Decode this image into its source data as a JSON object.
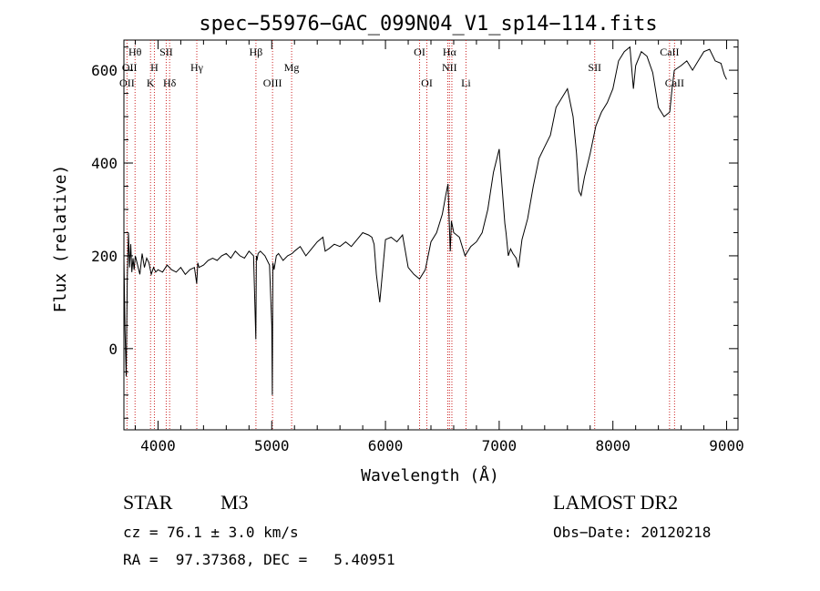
{
  "chart_data": {
    "type": "line",
    "title": "spec−55976−GAC_099N04_V1_sp14−114.fits",
    "xlabel": "Wavelength (Å)",
    "ylabel": "Flux (relative)",
    "xlim": [
      3700,
      9100
    ],
    "ylim": [
      -175,
      665
    ],
    "x_ticks": [
      4000,
      5000,
      6000,
      7000,
      8000,
      9000
    ],
    "x_tick_labels": [
      "4000",
      "5000",
      "6000",
      "7000",
      "8000",
      "9000"
    ],
    "y_ticks": [
      0,
      200,
      400,
      600
    ],
    "y_tick_labels": [
      "0",
      "200",
      "400",
      "600"
    ],
    "grid": false,
    "line_color": "#000000",
    "marker_color": "#cc2222",
    "series": [
      {
        "x": [
          3700,
          3710,
          3720,
          3730,
          3740,
          3750,
          3760,
          3770,
          3780,
          3790,
          3800,
          3820,
          3840,
          3860,
          3880,
          3900,
          3920,
          3940,
          3960,
          3980,
          4000,
          4040,
          4080,
          4120,
          4160,
          4200,
          4240,
          4280,
          4320,
          4340,
          4350,
          4360,
          4400,
          4440,
          4480,
          4520,
          4560,
          4600,
          4640,
          4680,
          4720,
          4760,
          4800,
          4840,
          4860,
          4865,
          4870,
          4880,
          4900,
          4940,
          4980,
          5000,
          5005,
          5010,
          5020,
          5040,
          5060,
          5100,
          5140,
          5180,
          5200,
          5250,
          5300,
          5350,
          5400,
          5450,
          5470,
          5500,
          5550,
          5600,
          5650,
          5700,
          5750,
          5800,
          5850,
          5880,
          5900,
          5920,
          5950,
          6000,
          6050,
          6100,
          6150,
          6200,
          6250,
          6300,
          6350,
          6400,
          6450,
          6500,
          6530,
          6550,
          6563,
          6570,
          6580,
          6600,
          6650,
          6700,
          6750,
          6800,
          6850,
          6900,
          6950,
          7000,
          7050,
          7060,
          7080,
          7100,
          7120,
          7150,
          7170,
          7200,
          7250,
          7300,
          7350,
          7400,
          7450,
          7500,
          7550,
          7600,
          7650,
          7680,
          7700,
          7720,
          7750,
          7800,
          7850,
          7900,
          7950,
          8000,
          8050,
          8100,
          8150,
          8180,
          8200,
          8250,
          8300,
          8350,
          8400,
          8450,
          8500,
          8520,
          8540,
          8600,
          8650,
          8700,
          8750,
          8800,
          8850,
          8900,
          8950,
          8980,
          9000
        ],
        "y": [
          200,
          40,
          -60,
          150,
          250,
          175,
          225,
          165,
          195,
          170,
          200,
          180,
          160,
          205,
          175,
          195,
          185,
          160,
          175,
          165,
          170,
          165,
          180,
          170,
          165,
          175,
          160,
          170,
          175,
          140,
          185,
          175,
          180,
          190,
          195,
          190,
          200,
          205,
          195,
          210,
          200,
          195,
          210,
          200,
          20,
          200,
          190,
          205,
          210,
          200,
          180,
          50,
          -100,
          185,
          170,
          200,
          205,
          190,
          200,
          205,
          210,
          220,
          200,
          215,
          230,
          240,
          210,
          215,
          225,
          220,
          230,
          220,
          235,
          250,
          245,
          240,
          225,
          160,
          100,
          235,
          240,
          230,
          245,
          175,
          160,
          150,
          170,
          230,
          250,
          290,
          330,
          355,
          260,
          210,
          275,
          250,
          240,
          200,
          220,
          230,
          250,
          300,
          380,
          430,
          270,
          250,
          200,
          215,
          205,
          195,
          175,
          235,
          280,
          350,
          410,
          435,
          460,
          520,
          540,
          560,
          500,
          420,
          340,
          330,
          370,
          420,
          480,
          510,
          530,
          560,
          620,
          640,
          650,
          560,
          610,
          640,
          630,
          595,
          520,
          500,
          510,
          560,
          600,
          610,
          620,
          600,
          620,
          640,
          645,
          620,
          615,
          590,
          580
        ]
      }
    ],
    "lines": [
      {
        "name": "Hθ",
        "x": 3798
      },
      {
        "name": "OII",
        "x": 3727
      },
      {
        "name": "H",
        "x": 3968
      },
      {
        "name": "K",
        "x": 3934
      },
      {
        "name": "SII",
        "x": 4072
      },
      {
        "name": "Hδ",
        "x": 4102
      },
      {
        "name": "Hγ",
        "x": 4341
      },
      {
        "name": "Hβ",
        "x": 4861
      },
      {
        "name": "OIII",
        "x": 5007
      },
      {
        "name": "Mg",
        "x": 5175
      },
      {
        "name": "OI",
        "x": 6300
      },
      {
        "name": "OI",
        "x": 6364
      },
      {
        "name": "Hα",
        "x": 6563
      },
      {
        "name": "NII",
        "x": 6548
      },
      {
        "name": "NII",
        "x": 6584
      },
      {
        "name": "Li",
        "x": 6708
      },
      {
        "name": "SII",
        "x": 7840
      },
      {
        "name": "CaII",
        "x": 8498
      },
      {
        "name": "CaII",
        "x": 8542
      }
    ]
  },
  "labels": {
    "line_names": [
      {
        "text": "Hθ",
        "row": 1,
        "at": 3798
      },
      {
        "text": "OII",
        "row": 2,
        "at": 3750
      },
      {
        "text": "OII",
        "row": 3,
        "at": 3727
      },
      {
        "text": "H",
        "row": 2,
        "at": 3968
      },
      {
        "text": "K",
        "row": 3,
        "at": 3934
      },
      {
        "text": "SII",
        "row": 1,
        "at": 4072
      },
      {
        "text": "Hδ",
        "row": 3,
        "at": 4102
      },
      {
        "text": "Hγ",
        "row": 2,
        "at": 4341
      },
      {
        "text": "Hβ",
        "row": 1,
        "at": 4861
      },
      {
        "text": "OIII",
        "row": 3,
        "at": 5007
      },
      {
        "text": "Mg",
        "row": 2,
        "at": 5175
      },
      {
        "text": "OI",
        "row": 1,
        "at": 6300
      },
      {
        "text": "OI",
        "row": 3,
        "at": 6364
      },
      {
        "text": "Hα",
        "row": 1,
        "at": 6563
      },
      {
        "text": "NII",
        "row": 2,
        "at": 6563
      },
      {
        "text": "Li",
        "row": 3,
        "at": 6708
      },
      {
        "text": "SII",
        "row": 2,
        "at": 7840
      },
      {
        "text": "CaII",
        "row": 1,
        "at": 8498
      },
      {
        "text": "CaII",
        "row": 3,
        "at": 8542
      }
    ]
  },
  "info": {
    "object_class": "STAR",
    "subclass": "M3",
    "survey": "LAMOST DR2",
    "redshift": "cz = 76.1 ± 3.0 km/s",
    "obs_date": "Obs−Date: 20120218",
    "coords": "RA =  97.37368, DEC =   5.40951"
  }
}
